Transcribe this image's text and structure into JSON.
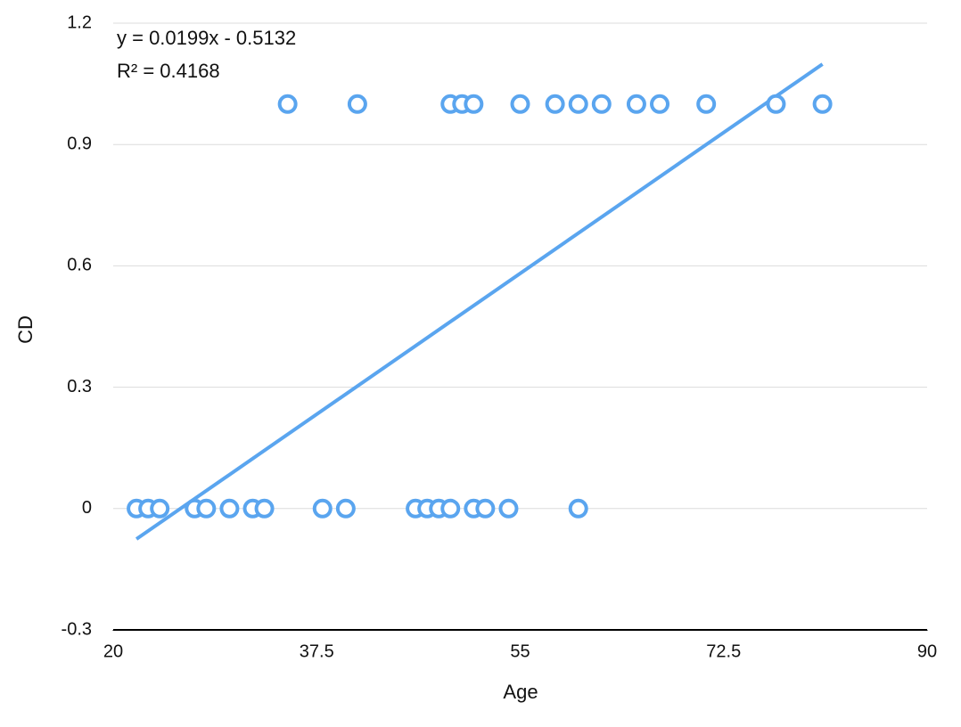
{
  "chart_data": {
    "type": "scatter",
    "x_label": "Age",
    "y_label": "CD",
    "series": [
      {
        "color": "#5aa5ef",
        "x": [
          22,
          23,
          24,
          27,
          28,
          30,
          32,
          33,
          38,
          40,
          46,
          47,
          48,
          49,
          51,
          52,
          54,
          60,
          35,
          41,
          49,
          50,
          51,
          55,
          58,
          60,
          62,
          65,
          67,
          71,
          77,
          81
        ],
        "values": [
          0,
          0,
          0,
          0,
          0,
          0,
          0,
          0,
          0,
          0,
          0,
          0,
          0,
          0,
          0,
          0,
          0,
          0,
          1,
          1,
          1,
          1,
          1,
          1,
          1,
          1,
          1,
          1,
          1,
          1,
          1,
          1
        ]
      }
    ],
    "trendline": {
      "equation": "y = 0.0199x - 0.5132",
      "r_squared": "R² = 0.4168",
      "slope": 0.0199,
      "intercept": -0.5132,
      "color": "#5aa5ef"
    },
    "xlim": [
      20,
      90
    ],
    "xticks": [
      20,
      37.5,
      55,
      72.5,
      90
    ],
    "ylim": [
      -0.3,
      1.2
    ],
    "yticks": [
      -0.3,
      0,
      0.3,
      0.6,
      0.9,
      1.2
    ],
    "grid": true
  }
}
